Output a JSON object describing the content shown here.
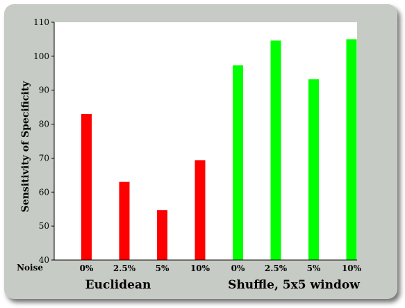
{
  "chart_data": {
    "type": "bar",
    "title": "",
    "ylabel": "Sensitivity of Specificity",
    "xlabel": "Noise",
    "ylim": [
      40,
      110
    ],
    "yticks": [
      40,
      50,
      60,
      70,
      80,
      90,
      100,
      110
    ],
    "categories": [
      "0%",
      "2.5%",
      "5%",
      "10%",
      "0%",
      "2.5%",
      "5%",
      "10%"
    ],
    "values": [
      83,
      63,
      54.7,
      69.4,
      97.3,
      104.6,
      93.2,
      105
    ],
    "colors": [
      "#ff0000",
      "#ff0000",
      "#ff0000",
      "#ff0000",
      "#00ff00",
      "#00ff00",
      "#00ff00",
      "#00ff00"
    ],
    "groups": [
      {
        "label": "Euclidean",
        "categories": [
          0,
          1,
          2,
          3
        ]
      },
      {
        "label": "Shuffle, 5x5 window",
        "categories": [
          4,
          5,
          6,
          7
        ]
      }
    ],
    "grid": false,
    "legend": "none"
  }
}
